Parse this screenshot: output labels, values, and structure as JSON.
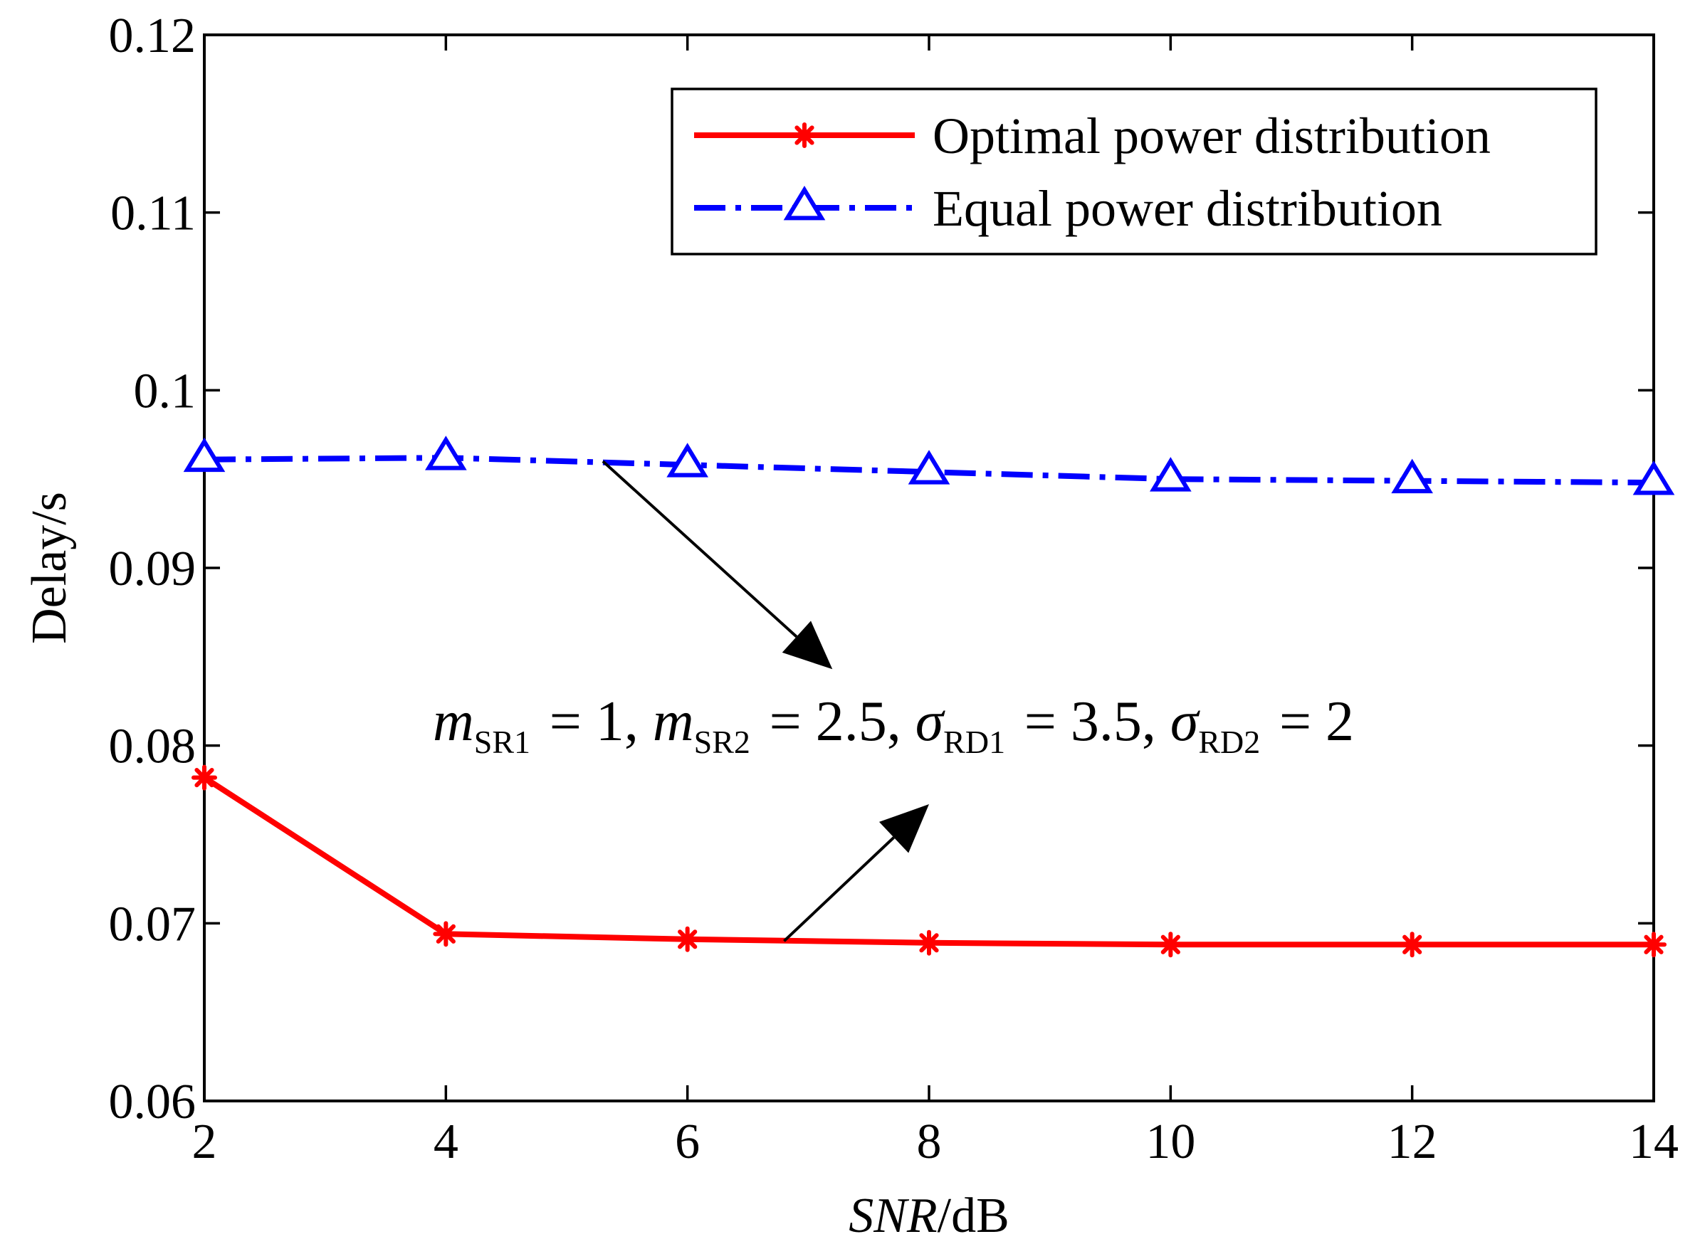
{
  "chart_data": {
    "type": "line",
    "title": "",
    "xlabel_italic": "SNR",
    "xlabel_rest": "/dB",
    "ylabel": "Delay/s",
    "xlim": [
      2,
      14
    ],
    "ylim": [
      0.06,
      0.12
    ],
    "x_ticks": [
      2,
      4,
      6,
      8,
      10,
      12,
      14
    ],
    "x_tick_labels": [
      "2",
      "4",
      "6",
      "8",
      "10",
      "12",
      "14"
    ],
    "y_ticks": [
      0.06,
      0.07,
      0.08,
      0.09,
      0.1,
      0.11,
      0.12
    ],
    "y_tick_labels": [
      "0.06",
      "0.07",
      "0.08",
      "0.09",
      "0.1",
      "0.11",
      "0.12"
    ],
    "grid": false,
    "legend_position": "top-right",
    "x": [
      2,
      4,
      6,
      8,
      10,
      12,
      14
    ],
    "series": [
      {
        "name": "Optimal power distribution",
        "color": "#ff0000",
        "marker": "asterisk",
        "line_style": "solid",
        "values": [
          0.0782,
          0.0694,
          0.0691,
          0.0689,
          0.0688,
          0.0688,
          0.0688
        ]
      },
      {
        "name": "Equal power distribution",
        "color": "#0000ff",
        "marker": "triangle",
        "line_style": "dash-dot",
        "values": [
          0.0961,
          0.0962,
          0.0958,
          0.0954,
          0.095,
          0.0949,
          0.0948
        ]
      }
    ],
    "annotation": {
      "parts": [
        {
          "main": "m",
          "sub": "SR1",
          "italic": true
        },
        {
          "main": " = 1, ",
          "sub": "",
          "italic": false
        },
        {
          "main": "m",
          "sub": "SR2",
          "italic": true
        },
        {
          "main": " = 2.5, ",
          "sub": "",
          "italic": false
        },
        {
          "main": "σ",
          "sub": "RD1",
          "italic": true
        },
        {
          "main": " = 3.5, ",
          "sub": "",
          "italic": false
        },
        {
          "main": "σ",
          "sub": "RD2",
          "italic": true
        },
        {
          "main": " = 2",
          "sub": "",
          "italic": false
        }
      ],
      "arrow_upper_from": [
        5.3,
        0.096
      ],
      "arrow_upper_to": [
        7.2,
        0.0843
      ],
      "arrow_lower_from": [
        6.8,
        0.069
      ],
      "arrow_lower_to": [
        8.0,
        0.0767
      ]
    }
  }
}
